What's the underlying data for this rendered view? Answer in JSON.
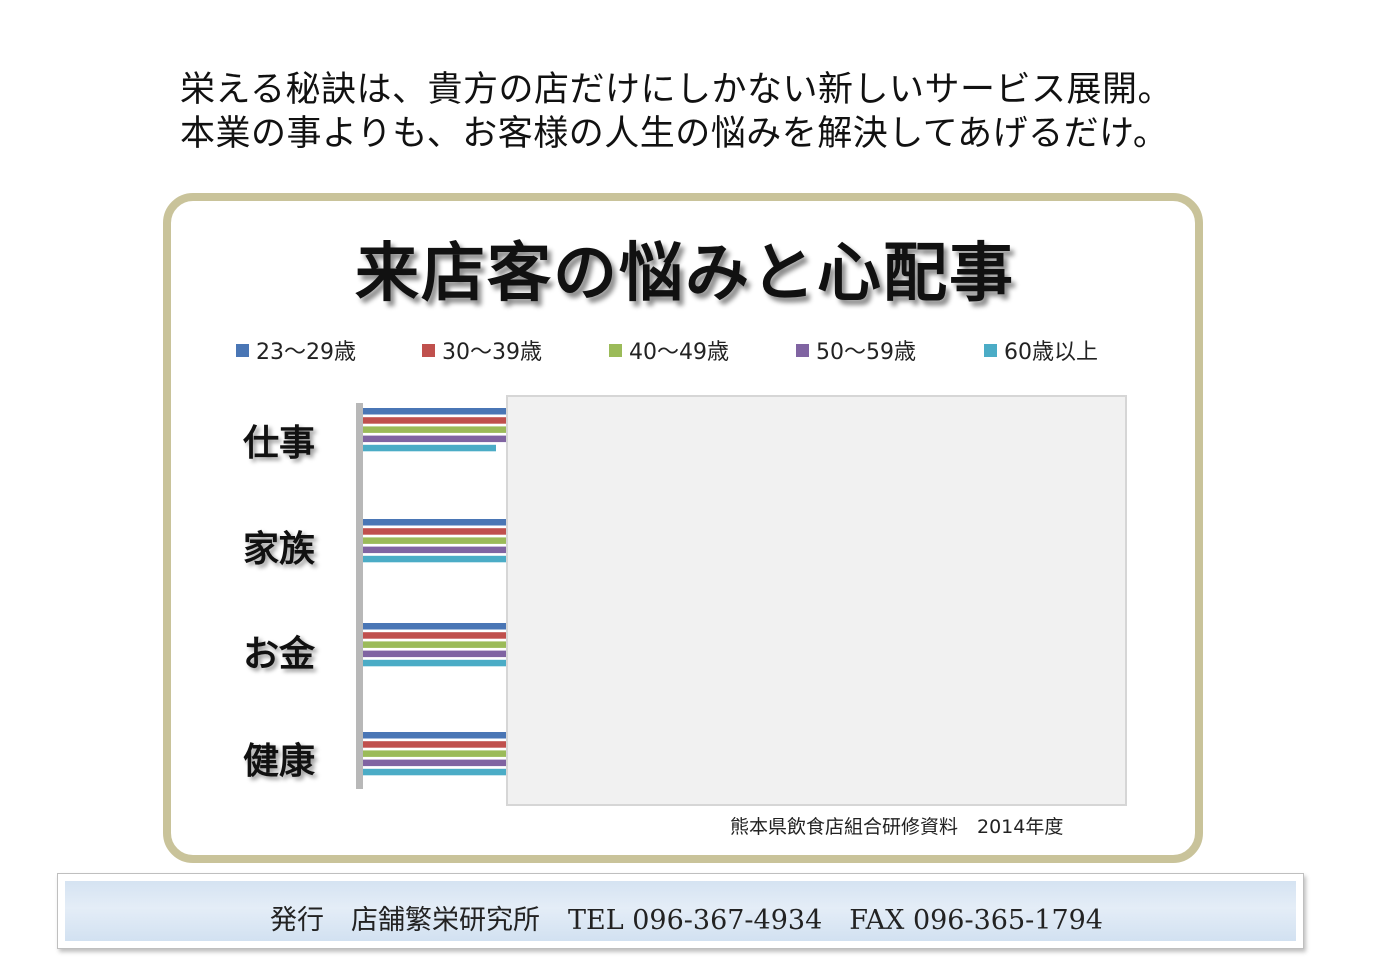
{
  "headline": {
    "line1": "栄える秘訣は、貴方の店だけにしかない新しいサービス展開。",
    "line2": "本業の事よりも、お客様の人生の悩みを解決してあげるだけ。"
  },
  "source_note": "熊本県飲食店組合研修資料　2014年度",
  "footer": {
    "publisher": "発行　店舗繁栄研究所",
    "contact": "TEL 096-367-4934　FAX 096-365-1794"
  },
  "chart_data": {
    "type": "bar",
    "orientation": "horizontal",
    "title": "来店客の悩みと心配事",
    "categories": [
      "仕事",
      "家族",
      "お金",
      "健康"
    ],
    "legend_position": "top",
    "series": [
      {
        "name": "23〜29歳",
        "color": "#4a76b5",
        "values": [
          1.0,
          1.0,
          1.0,
          1.0
        ]
      },
      {
        "name": "30〜39歳",
        "color": "#c0504d",
        "values": [
          1.0,
          1.0,
          1.0,
          1.0
        ]
      },
      {
        "name": "40〜49歳",
        "color": "#9bbb59",
        "values": [
          1.0,
          1.0,
          1.0,
          1.0
        ]
      },
      {
        "name": "50〜59歳",
        "color": "#8064a2",
        "values": [
          1.0,
          1.0,
          1.0,
          1.0
        ]
      },
      {
        "name": "60歳以上",
        "color": "#4bacc6",
        "values": [
          0.93,
          1.0,
          1.0,
          1.0
        ]
      }
    ],
    "note": "values beyond the visible portion are hidden behind an overlay"
  }
}
